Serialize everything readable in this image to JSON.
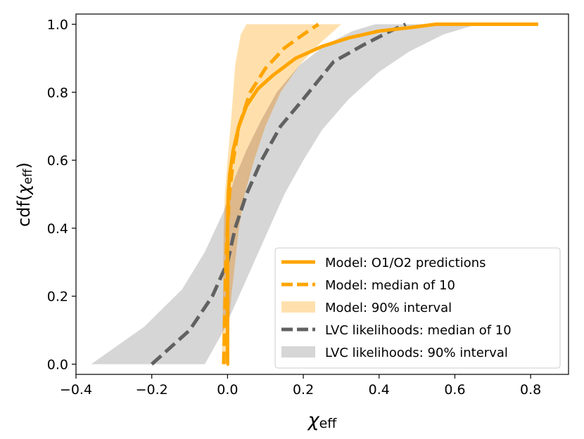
{
  "chart_data": {
    "type": "line",
    "xlabel": {
      "symbol": "χ",
      "subscript": "eff"
    },
    "ylabel": {
      "prefix": "cdf(",
      "symbol": "χ",
      "subscript": "eff",
      "suffix": ")"
    },
    "xlim": [
      -0.4,
      0.9
    ],
    "ylim": [
      -0.03,
      1.03
    ],
    "x_ticks": [
      -0.4,
      -0.2,
      0.0,
      0.2,
      0.4,
      0.6,
      0.8
    ],
    "x_tick_labels": [
      "−0.4",
      "−0.2",
      "0.0",
      "0.2",
      "0.4",
      "0.6",
      "0.8"
    ],
    "y_ticks": [
      0.0,
      0.2,
      0.4,
      0.6,
      0.8,
      1.0
    ],
    "y_tick_labels": [
      "0.0",
      "0.2",
      "0.4",
      "0.6",
      "0.8",
      "1.0"
    ],
    "grid": false,
    "legend_position": "lower-right",
    "colors": {
      "model": "#ffa500",
      "model_band": "#ffe0ad",
      "lvc": "#616161",
      "lvc_band": "#d6d6d6",
      "overlap": "#dcb88c"
    },
    "series": [
      {
        "name": "Model: O1/O2 predictions",
        "style": "solid",
        "points": [
          [
            -0.002,
            0.0
          ],
          [
            0.0,
            0.0
          ],
          [
            0.0,
            0.1
          ],
          [
            0.0,
            0.2
          ],
          [
            0.0,
            0.3
          ],
          [
            0.0,
            0.4
          ],
          [
            0.002,
            0.5
          ],
          [
            0.006,
            0.56
          ],
          [
            0.015,
            0.63
          ],
          [
            0.03,
            0.7
          ],
          [
            0.05,
            0.76
          ],
          [
            0.08,
            0.81
          ],
          [
            0.12,
            0.85
          ],
          [
            0.18,
            0.9
          ],
          [
            0.25,
            0.935
          ],
          [
            0.32,
            0.96
          ],
          [
            0.4,
            0.98
          ],
          [
            0.48,
            0.99
          ],
          [
            0.55,
            1.0
          ],
          [
            0.65,
            1.0
          ],
          [
            0.82,
            1.0
          ]
        ]
      },
      {
        "name": "Model: median of 10",
        "style": "dashed",
        "points": [
          [
            -0.01,
            0.0
          ],
          [
            -0.008,
            0.1
          ],
          [
            -0.006,
            0.2
          ],
          [
            -0.004,
            0.3
          ],
          [
            0.0,
            0.4
          ],
          [
            0.005,
            0.5
          ],
          [
            0.015,
            0.6
          ],
          [
            0.03,
            0.7
          ],
          [
            0.06,
            0.8
          ],
          [
            0.1,
            0.87
          ],
          [
            0.15,
            0.93
          ],
          [
            0.2,
            0.97
          ],
          [
            0.24,
            1.0
          ]
        ]
      },
      {
        "name": "Model: 90% interval",
        "style": "band",
        "lower": [
          [
            0.0,
            0.0
          ],
          [
            0.003,
            0.1
          ],
          [
            0.01,
            0.2
          ],
          [
            0.02,
            0.3
          ],
          [
            0.03,
            0.4
          ],
          [
            0.045,
            0.5
          ],
          [
            0.07,
            0.6
          ],
          [
            0.1,
            0.7
          ],
          [
            0.14,
            0.8
          ],
          [
            0.19,
            0.88
          ],
          [
            0.24,
            0.94
          ],
          [
            0.28,
            0.98
          ],
          [
            0.3,
            1.0
          ]
        ],
        "upper": [
          [
            -0.015,
            0.0
          ],
          [
            -0.012,
            0.2
          ],
          [
            -0.01,
            0.4
          ],
          [
            -0.007,
            0.5
          ],
          [
            0.0,
            0.6
          ],
          [
            0.008,
            0.7
          ],
          [
            0.015,
            0.8
          ],
          [
            0.02,
            0.88
          ],
          [
            0.035,
            0.97
          ],
          [
            0.05,
            1.0
          ]
        ]
      },
      {
        "name": "LVC likelihoods: median of 10",
        "style": "dashed",
        "points": [
          [
            -0.2,
            0.0
          ],
          [
            -0.1,
            0.1
          ],
          [
            -0.04,
            0.2
          ],
          [
            0.0,
            0.3
          ],
          [
            0.02,
            0.4
          ],
          [
            0.05,
            0.5
          ],
          [
            0.09,
            0.6
          ],
          [
            0.14,
            0.7
          ],
          [
            0.2,
            0.78
          ],
          [
            0.28,
            0.89
          ],
          [
            0.36,
            0.94
          ],
          [
            0.43,
            0.98
          ],
          [
            0.47,
            1.0
          ]
        ]
      },
      {
        "name": "LVC likelihoods: 90% interval",
        "style": "band",
        "lower": [
          [
            -0.06,
            0.0
          ],
          [
            -0.01,
            0.1
          ],
          [
            0.03,
            0.2
          ],
          [
            0.07,
            0.3
          ],
          [
            0.11,
            0.4
          ],
          [
            0.15,
            0.5
          ],
          [
            0.2,
            0.6
          ],
          [
            0.25,
            0.69
          ],
          [
            0.32,
            0.78
          ],
          [
            0.4,
            0.86
          ],
          [
            0.48,
            0.92
          ],
          [
            0.57,
            0.97
          ],
          [
            0.66,
            1.0
          ]
        ],
        "upper": [
          [
            -0.36,
            0.0
          ],
          [
            -0.22,
            0.11
          ],
          [
            -0.12,
            0.22
          ],
          [
            -0.06,
            0.33
          ],
          [
            -0.01,
            0.45
          ],
          [
            0.02,
            0.55
          ],
          [
            0.05,
            0.63
          ],
          [
            0.09,
            0.72
          ],
          [
            0.13,
            0.8
          ],
          [
            0.19,
            0.88
          ],
          [
            0.26,
            0.94
          ],
          [
            0.33,
            0.98
          ],
          [
            0.39,
            1.0
          ]
        ]
      }
    ]
  }
}
